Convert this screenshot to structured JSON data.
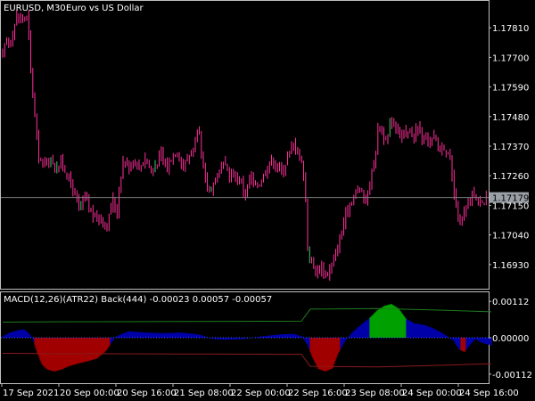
{
  "header": {
    "symbol_tf": "EURUSD, M30:",
    "description": "Euro vs US Dollar"
  },
  "indicator": {
    "caption": "MACD(12,26)(ATR22) Back(444) -0.00023 0.00057 -0.00057"
  },
  "colors": {
    "background": "#000000",
    "frame": "#c0c0c0",
    "candle": "#ff2f9a",
    "candle_bull": "#33cc66",
    "bidline": "#808080",
    "price_badge_bg": "#9aa0a6",
    "histo_positive": "#0000a8",
    "histo_negative": "#a00000",
    "histo_signal_up": "#00a000",
    "histo_signal_down": "#a00000",
    "upper_band": "#1f7a1f",
    "lower_band": "#8b1a1a",
    "zero_line": "#4060ff"
  },
  "chart_data": [
    {
      "type": "candlestick",
      "symbol": "EURUSD",
      "timeframe": "M30",
      "title": "Euro vs US Dollar",
      "y_ticks": [
        1.1781,
        1.177,
        1.1759,
        1.1748,
        1.1737,
        1.1726,
        1.1715,
        1.1704,
        1.1693
      ],
      "y_tick_labels": [
        "1.17810",
        "1.17700",
        "1.17590",
        "1.17480",
        "1.17370",
        "1.17260",
        "1.17150",
        "1.17040",
        "1.16930"
      ],
      "ylim": [
        1.1684,
        1.1791
      ],
      "current_price": 1.17179,
      "current_price_label": "1.17179",
      "x_labels": [
        "17 Sep 2021",
        "20 Sep 00:00",
        "20 Sep 16:00",
        "21 Sep 08:00",
        "22 Sep 00:00",
        "22 Sep 16:00",
        "23 Sep 08:00",
        "24 Sep 00:00",
        "24 Sep 16:00"
      ],
      "close_path": [
        {
          "t": 0,
          "p": 1.177
        },
        {
          "t": 4,
          "p": 1.1777
        },
        {
          "t": 8,
          "p": 1.1774
        },
        {
          "t": 12,
          "p": 1.178
        },
        {
          "t": 16,
          "p": 1.1786
        },
        {
          "t": 22,
          "p": 1.1784
        },
        {
          "t": 28,
          "p": 1.1785
        },
        {
          "t": 32,
          "p": 1.1762
        },
        {
          "t": 36,
          "p": 1.1748
        },
        {
          "t": 40,
          "p": 1.1733
        },
        {
          "t": 46,
          "p": 1.173
        },
        {
          "t": 54,
          "p": 1.1732
        },
        {
          "t": 60,
          "p": 1.1729
        },
        {
          "t": 66,
          "p": 1.1731
        },
        {
          "t": 72,
          "p": 1.1726
        },
        {
          "t": 80,
          "p": 1.172
        },
        {
          "t": 86,
          "p": 1.1713
        },
        {
          "t": 92,
          "p": 1.1718
        },
        {
          "t": 98,
          "p": 1.1713
        },
        {
          "t": 104,
          "p": 1.171
        },
        {
          "t": 110,
          "p": 1.1711
        },
        {
          "t": 116,
          "p": 1.1706
        },
        {
          "t": 120,
          "p": 1.1712
        },
        {
          "t": 124,
          "p": 1.1717
        },
        {
          "t": 128,
          "p": 1.1712
        },
        {
          "t": 132,
          "p": 1.1725
        },
        {
          "t": 136,
          "p": 1.1733
        },
        {
          "t": 140,
          "p": 1.1729
        },
        {
          "t": 146,
          "p": 1.1732
        },
        {
          "t": 154,
          "p": 1.1729
        },
        {
          "t": 160,
          "p": 1.1733
        },
        {
          "t": 166,
          "p": 1.1728
        },
        {
          "t": 172,
          "p": 1.173
        },
        {
          "t": 178,
          "p": 1.1734
        },
        {
          "t": 184,
          "p": 1.1729
        },
        {
          "t": 190,
          "p": 1.1733
        },
        {
          "t": 196,
          "p": 1.1735
        },
        {
          "t": 202,
          "p": 1.1729
        },
        {
          "t": 208,
          "p": 1.1733
        },
        {
          "t": 214,
          "p": 1.1736
        },
        {
          "t": 220,
          "p": 1.1743
        },
        {
          "t": 224,
          "p": 1.173
        },
        {
          "t": 230,
          "p": 1.172
        },
        {
          "t": 236,
          "p": 1.1723
        },
        {
          "t": 242,
          "p": 1.1727
        },
        {
          "t": 248,
          "p": 1.173
        },
        {
          "t": 254,
          "p": 1.1727
        },
        {
          "t": 260,
          "p": 1.1726
        },
        {
          "t": 266,
          "p": 1.1725
        },
        {
          "t": 272,
          "p": 1.1719
        },
        {
          "t": 278,
          "p": 1.1726
        },
        {
          "t": 284,
          "p": 1.1722
        },
        {
          "t": 290,
          "p": 1.1724
        },
        {
          "t": 296,
          "p": 1.1729
        },
        {
          "t": 302,
          "p": 1.1732
        },
        {
          "t": 308,
          "p": 1.1729
        },
        {
          "t": 314,
          "p": 1.1728
        },
        {
          "t": 320,
          "p": 1.1733
        },
        {
          "t": 326,
          "p": 1.1738
        },
        {
          "t": 332,
          "p": 1.1734
        },
        {
          "t": 336,
          "p": 1.173
        },
        {
          "t": 339,
          "p": 1.1722
        },
        {
          "t": 342,
          "p": 1.17
        },
        {
          "t": 346,
          "p": 1.1694
        },
        {
          "t": 352,
          "p": 1.169
        },
        {
          "t": 358,
          "p": 1.1692
        },
        {
          "t": 364,
          "p": 1.1689
        },
        {
          "t": 370,
          "p": 1.1694
        },
        {
          "t": 376,
          "p": 1.17
        },
        {
          "t": 382,
          "p": 1.1708
        },
        {
          "t": 388,
          "p": 1.1715
        },
        {
          "t": 394,
          "p": 1.1718
        },
        {
          "t": 400,
          "p": 1.1722
        },
        {
          "t": 406,
          "p": 1.1716
        },
        {
          "t": 410,
          "p": 1.172
        },
        {
          "t": 414,
          "p": 1.1727
        },
        {
          "t": 418,
          "p": 1.1734
        },
        {
          "t": 422,
          "p": 1.1746
        },
        {
          "t": 426,
          "p": 1.1742
        },
        {
          "t": 430,
          "p": 1.1738
        },
        {
          "t": 436,
          "p": 1.1747
        },
        {
          "t": 442,
          "p": 1.1744
        },
        {
          "t": 448,
          "p": 1.174
        },
        {
          "t": 454,
          "p": 1.1742
        },
        {
          "t": 460,
          "p": 1.1741
        },
        {
          "t": 466,
          "p": 1.1744
        },
        {
          "t": 472,
          "p": 1.1739
        },
        {
          "t": 478,
          "p": 1.1738
        },
        {
          "t": 484,
          "p": 1.174
        },
        {
          "t": 490,
          "p": 1.1736
        },
        {
          "t": 496,
          "p": 1.1737
        },
        {
          "t": 502,
          "p": 1.1731
        },
        {
          "t": 506,
          "p": 1.172
        },
        {
          "t": 510,
          "p": 1.1712
        },
        {
          "t": 514,
          "p": 1.1707
        },
        {
          "t": 518,
          "p": 1.1713
        },
        {
          "t": 524,
          "p": 1.1716
        },
        {
          "t": 528,
          "p": 1.1721
        },
        {
          "t": 532,
          "p": 1.1716
        },
        {
          "t": 536,
          "p": 1.1718
        },
        {
          "t": 540,
          "p": 1.1716
        },
        {
          "t": 544,
          "p": 1.1722
        }
      ]
    },
    {
      "type": "histogram",
      "name": "MACD(12,26)(ATR22) Back(444)",
      "values_shown": [
        -0.00023,
        0.00057,
        -0.00057
      ],
      "y_ticks": [
        0.00112,
        0.0,
        -0.00112
      ],
      "y_tick_labels": [
        "0.00112",
        "0.00000",
        "-0.00112"
      ],
      "ylim": [
        -0.0014,
        0.0014
      ],
      "upper_band": [
        {
          "t": 0,
          "v": 0.00048
        },
        {
          "t": 60,
          "v": 0.00049
        },
        {
          "t": 200,
          "v": 0.0005
        },
        {
          "t": 335,
          "v": 0.00051
        },
        {
          "t": 345,
          "v": 0.00088
        },
        {
          "t": 420,
          "v": 0.0009
        },
        {
          "t": 480,
          "v": 0.00086
        },
        {
          "t": 548,
          "v": 0.0008
        }
      ],
      "lower_band": [
        {
          "t": 0,
          "v": -0.00048
        },
        {
          "t": 60,
          "v": -0.00049
        },
        {
          "t": 200,
          "v": -0.0005
        },
        {
          "t": 335,
          "v": -0.00051
        },
        {
          "t": 345,
          "v": -0.00088
        },
        {
          "t": 420,
          "v": -0.0009
        },
        {
          "t": 480,
          "v": -0.00086
        },
        {
          "t": 548,
          "v": -0.0008
        }
      ],
      "histogram": [
        {
          "t": 0,
          "v": 4e-05
        },
        {
          "t": 8,
          "v": 0.00016
        },
        {
          "t": 16,
          "v": 0.00022
        },
        {
          "t": 24,
          "v": 0.00026
        },
        {
          "t": 30,
          "v": 0.00012
        },
        {
          "t": 34,
          "v": -6e-05
        },
        {
          "t": 38,
          "v": -0.0004
        },
        {
          "t": 44,
          "v": -0.00082
        },
        {
          "t": 50,
          "v": -0.00098
        },
        {
          "t": 58,
          "v": -0.00104
        },
        {
          "t": 66,
          "v": -0.00098
        },
        {
          "t": 74,
          "v": -0.00088
        },
        {
          "t": 84,
          "v": -0.0008
        },
        {
          "t": 96,
          "v": -0.00072
        },
        {
          "t": 106,
          "v": -0.00064
        },
        {
          "t": 116,
          "v": -0.0004
        },
        {
          "t": 122,
          "v": -0.00016
        },
        {
          "t": 126,
          "v": 2e-05
        },
        {
          "t": 134,
          "v": 0.00012
        },
        {
          "t": 142,
          "v": 0.0002
        },
        {
          "t": 160,
          "v": 0.00016
        },
        {
          "t": 180,
          "v": 0.00014
        },
        {
          "t": 200,
          "v": 0.00016
        },
        {
          "t": 220,
          "v": 0.0001
        },
        {
          "t": 236,
          "v": -4e-05
        },
        {
          "t": 250,
          "v": -6e-05
        },
        {
          "t": 270,
          "v": -4e-05
        },
        {
          "t": 290,
          "v": 4e-05
        },
        {
          "t": 310,
          "v": 0.0001
        },
        {
          "t": 326,
          "v": 0.00012
        },
        {
          "t": 336,
          "v": 4e-05
        },
        {
          "t": 342,
          "v": -0.00024
        },
        {
          "t": 348,
          "v": -0.00064
        },
        {
          "t": 354,
          "v": -0.00096
        },
        {
          "t": 362,
          "v": -0.00104
        },
        {
          "t": 370,
          "v": -0.00094
        },
        {
          "t": 376,
          "v": -0.0005
        },
        {
          "t": 384,
          "v": -0.0001
        },
        {
          "t": 392,
          "v": 0.00016
        },
        {
          "t": 402,
          "v": 0.0004
        },
        {
          "t": 412,
          "v": 0.00062
        },
        {
          "t": 420,
          "v": 0.00084
        },
        {
          "t": 428,
          "v": 0.00098
        },
        {
          "t": 436,
          "v": 0.00104
        },
        {
          "t": 444,
          "v": 0.0009
        },
        {
          "t": 452,
          "v": 0.0006
        },
        {
          "t": 462,
          "v": 0.00044
        },
        {
          "t": 472,
          "v": 0.0004
        },
        {
          "t": 482,
          "v": 0.0003
        },
        {
          "t": 492,
          "v": 0.00016
        },
        {
          "t": 500,
          "v": 2e-05
        },
        {
          "t": 506,
          "v": -0.0001
        },
        {
          "t": 512,
          "v": -0.00036
        },
        {
          "t": 518,
          "v": -0.00044
        },
        {
          "t": 524,
          "v": -0.00022
        },
        {
          "t": 530,
          "v": -4e-05
        },
        {
          "t": 538,
          "v": -0.00016
        },
        {
          "t": 548,
          "v": -0.00023
        }
      ]
    }
  ]
}
